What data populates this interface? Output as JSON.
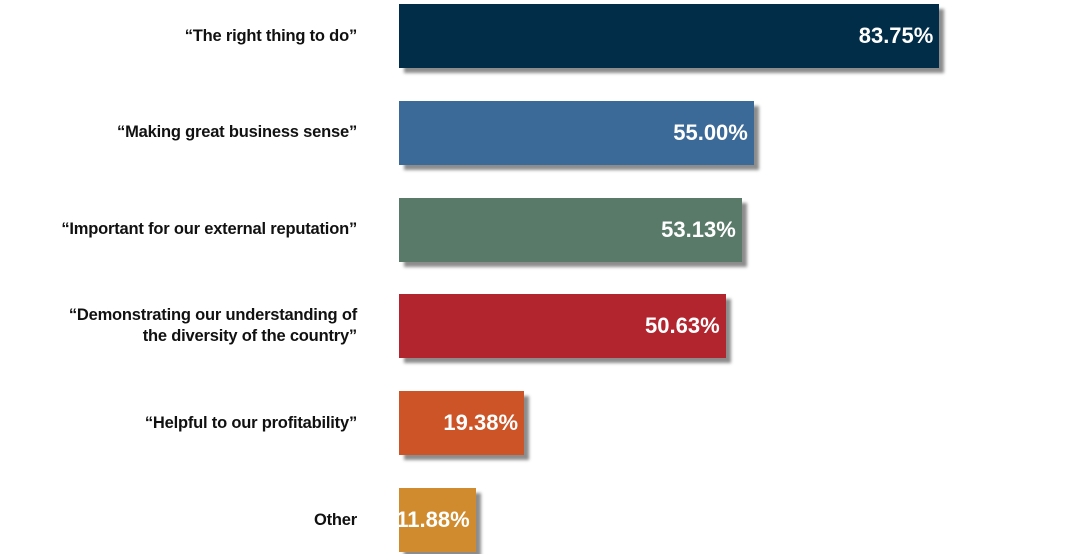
{
  "chart_data": {
    "type": "bar",
    "orientation": "horizontal",
    "title": "",
    "xlabel": "",
    "ylabel": "",
    "categories": [
      "“The right thing to do”",
      "“Making great business sense”",
      "“Important for our external reputation”",
      "“Demonstrating our understanding of\nthe diversity of the country”",
      "“Helpful to our profitability”",
      "Other"
    ],
    "values": [
      83.75,
      55.0,
      53.13,
      50.63,
      19.38,
      11.88
    ],
    "value_labels": [
      "83.75%",
      "55.00%",
      "53.13%",
      "50.63%",
      "19.38%",
      "11.88%"
    ],
    "colors": [
      "#022d49",
      "#3b6a99",
      "#5a7a69",
      "#b2252f",
      "#cc5427",
      "#d08b2e"
    ],
    "xlim": [
      0,
      100
    ],
    "grid": false,
    "legend": "none",
    "unit": "%"
  }
}
